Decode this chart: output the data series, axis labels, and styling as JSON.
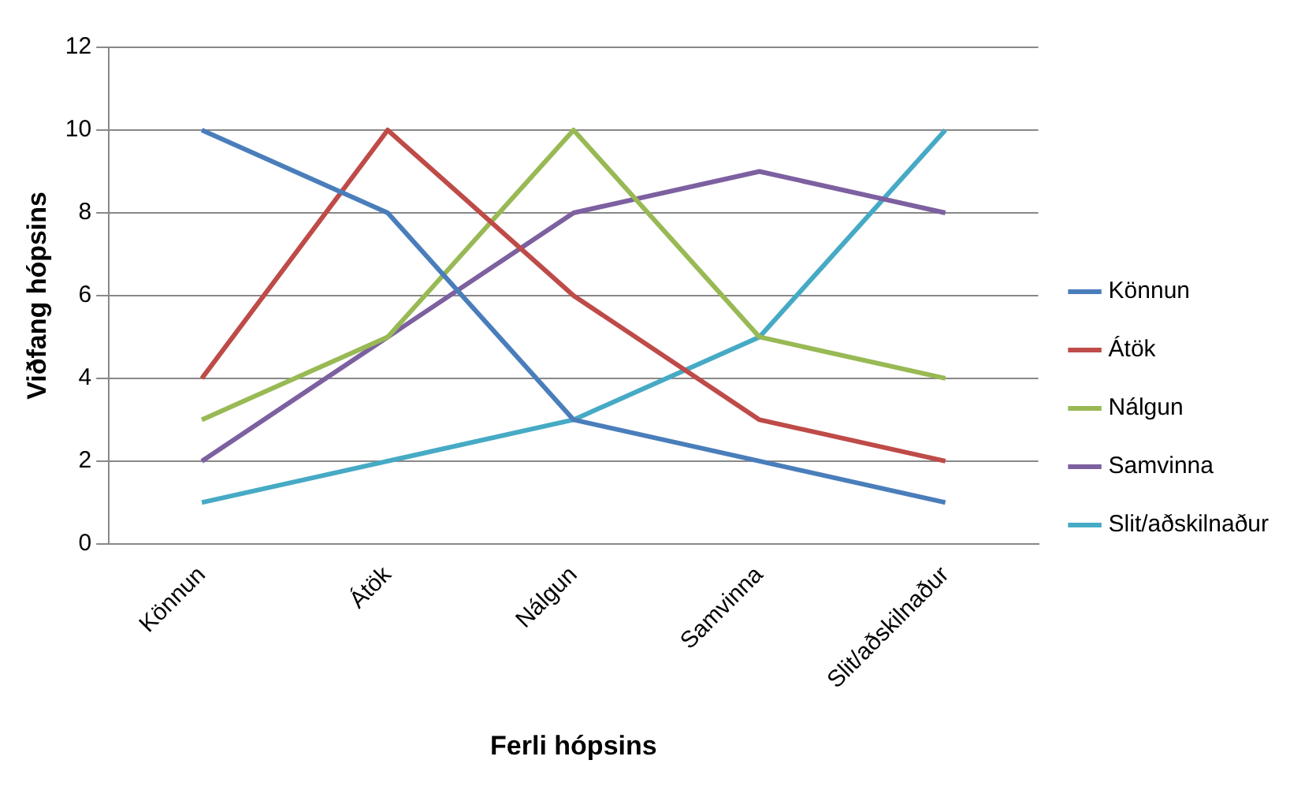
{
  "chart_data": {
    "type": "line",
    "xlabel": "Ferli hópsins",
    "ylabel": "Viðfang hópsins",
    "categories": [
      "Könnun",
      "Átök",
      "Nálgun",
      "Samvinna",
      "Slit/aðskilnaður"
    ],
    "series": [
      {
        "name": "Könnun",
        "color": "#4a7ebb",
        "values": [
          10,
          8,
          3,
          2,
          1
        ]
      },
      {
        "name": "Átök",
        "color": "#be4b48",
        "values": [
          4,
          10,
          6,
          3,
          2
        ]
      },
      {
        "name": "Nálgun",
        "color": "#98b954",
        "values": [
          3,
          5,
          10,
          5,
          4
        ]
      },
      {
        "name": "Samvinna",
        "color": "#7d60a0",
        "values": [
          2,
          5,
          8,
          9,
          8
        ]
      },
      {
        "name": "Slit/aðskilnaður",
        "color": "#46aac5",
        "values": [
          1,
          2,
          3,
          5,
          10
        ]
      }
    ],
    "ylim": [
      0,
      12
    ],
    "yticks": [
      0,
      2,
      4,
      6,
      8,
      10,
      12
    ],
    "grid": "y",
    "legend": "right",
    "marker": "none",
    "line_style": "solid"
  }
}
